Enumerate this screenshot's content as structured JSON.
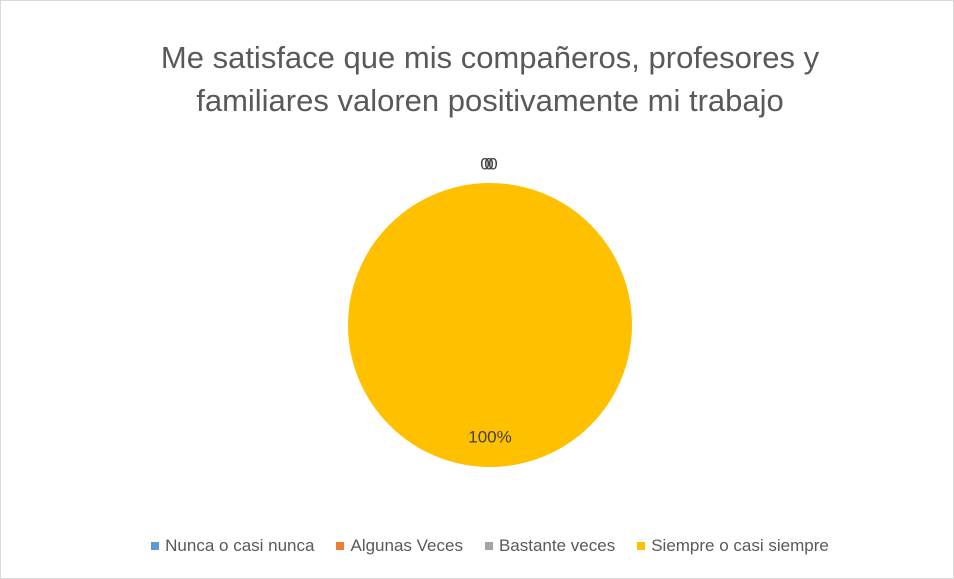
{
  "chart_data": {
    "type": "pie",
    "title": "Me satisface que mis compañeros, profesores y familiares valoren positivamente mi trabajo",
    "categories": [
      "Nunca o casi nunca",
      "Algunas Veces",
      "Bastante veces",
      "Siempre o casi siempre"
    ],
    "values": [
      0,
      0,
      0,
      100
    ],
    "value_labels": [
      "0",
      "0",
      "0",
      "100%"
    ],
    "colors": [
      "#5b9bd5",
      "#ed7d31",
      "#a5a5a5",
      "#ffc000"
    ],
    "legend": "bottom"
  }
}
